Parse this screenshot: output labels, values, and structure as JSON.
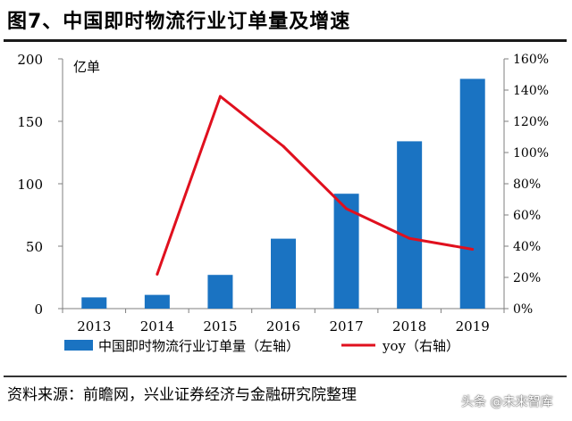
{
  "header": {
    "title": "图7、中国即时物流行业订单量及增速"
  },
  "footer": {
    "source": "资料来源：前瞻网，兴业证券经济与金融研究院整理",
    "watermark": "头条 @未来智库"
  },
  "chart_data": {
    "type": "bar",
    "categories": [
      "2013",
      "2014",
      "2015",
      "2016",
      "2017",
      "2018",
      "2019"
    ],
    "series": [
      {
        "name": "中国即时物流行业订单量（左轴）",
        "type": "bar",
        "axis": "left",
        "color": "#1a73c2",
        "values": [
          9,
          11,
          27,
          56,
          92,
          134,
          184
        ]
      },
      {
        "name": "yoy（右轴）",
        "type": "line",
        "axis": "right",
        "color": "#e0101e",
        "values": [
          null,
          22,
          136,
          104,
          64,
          45,
          38
        ]
      }
    ],
    "left_axis": {
      "label": "亿单",
      "min": 0,
      "max": 200,
      "ticks": [
        "0",
        "50",
        "100",
        "150",
        "200"
      ]
    },
    "right_axis": {
      "min": 0,
      "max": 160,
      "ticks": [
        "0%",
        "20%",
        "40%",
        "60%",
        "80%",
        "100%",
        "120%",
        "140%",
        "160%"
      ]
    },
    "legend_position": "bottom",
    "grid": false
  }
}
